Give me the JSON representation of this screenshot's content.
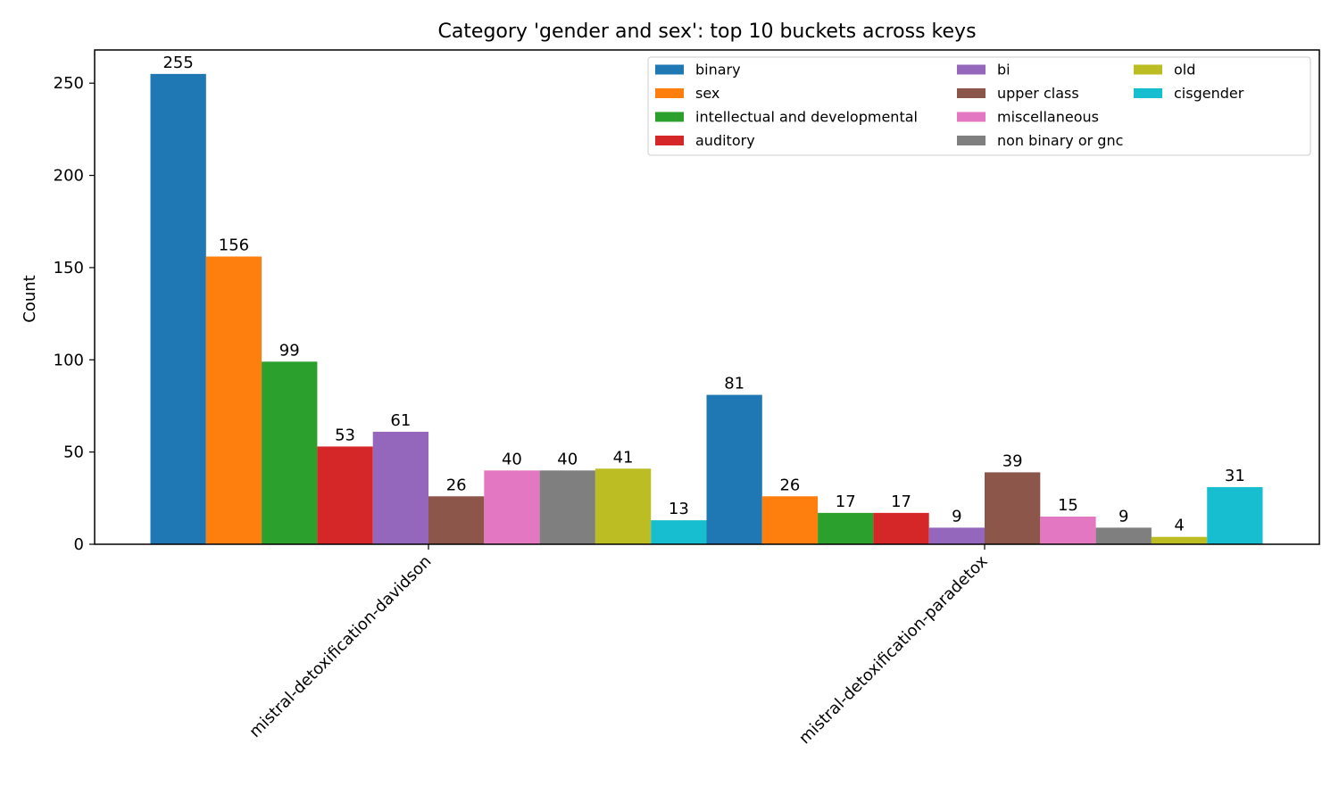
{
  "chart_data": {
    "type": "bar",
    "title": "Category 'gender and sex': top 10 buckets across keys",
    "xlabel": "",
    "ylabel": "Count",
    "ylim": [
      0,
      268
    ],
    "yticks": [
      0,
      50,
      100,
      150,
      200,
      250
    ],
    "grid": false,
    "legend_position": "top-right",
    "categories": [
      "mistral-detoxification-davidson",
      "mistral-detoxification-paradetox"
    ],
    "series": [
      {
        "name": "binary",
        "color": "#1f77b4",
        "values": [
          255,
          81
        ]
      },
      {
        "name": "sex",
        "color": "#ff7f0e",
        "values": [
          156,
          26
        ]
      },
      {
        "name": "intellectual and developmental",
        "color": "#2ca02c",
        "values": [
          99,
          17
        ]
      },
      {
        "name": "auditory",
        "color": "#d62728",
        "values": [
          53,
          17
        ]
      },
      {
        "name": "bi",
        "color": "#9467bd",
        "values": [
          61,
          9
        ]
      },
      {
        "name": "upper class",
        "color": "#8c564b",
        "values": [
          26,
          39
        ]
      },
      {
        "name": "miscellaneous",
        "color": "#e377c2",
        "values": [
          40,
          15
        ]
      },
      {
        "name": "non binary or gnc",
        "color": "#7f7f7f",
        "values": [
          40,
          9
        ]
      },
      {
        "name": "old",
        "color": "#bcbd22",
        "values": [
          41,
          4
        ]
      },
      {
        "name": "cisgender",
        "color": "#17becf",
        "values": [
          13,
          31
        ]
      }
    ]
  }
}
